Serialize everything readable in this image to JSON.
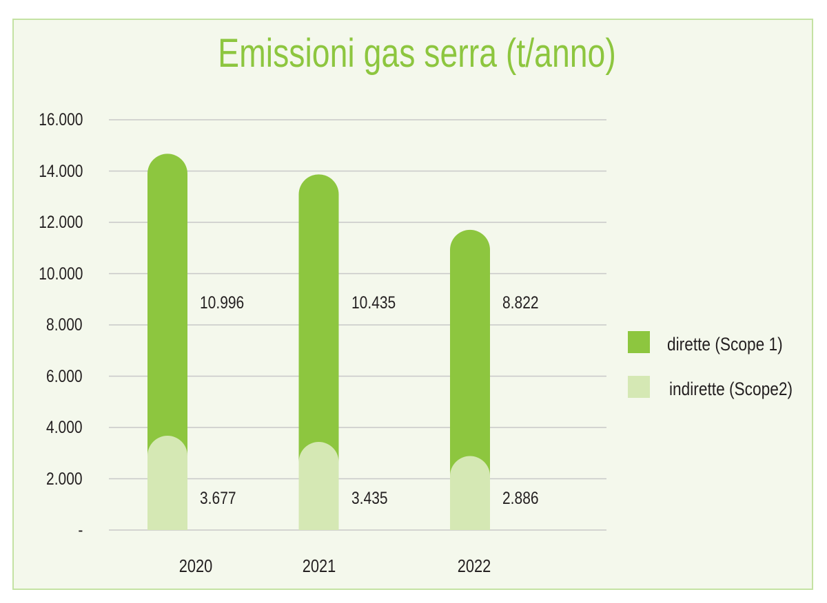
{
  "chart_data": {
    "type": "bar",
    "stacked": true,
    "title": "Emissioni gas serra (t/anno)",
    "categories": [
      "2020",
      "2021",
      "2022"
    ],
    "series": [
      {
        "name": "dirette (Scope 1)",
        "values": [
          10996,
          10435,
          8822
        ],
        "value_labels": [
          "10.996",
          "10.435",
          "8.822"
        ],
        "color": "#8dc63f"
      },
      {
        "name": "indirette (Scope2)",
        "values": [
          3677,
          3435,
          2886
        ],
        "value_labels": [
          "3.677",
          "3.435",
          "2.886"
        ],
        "color": "#d5e8b4"
      }
    ],
    "ylim": [
      0,
      16000
    ],
    "y_ticks": [
      0,
      2000,
      4000,
      6000,
      8000,
      10000,
      12000,
      14000,
      16000
    ],
    "y_tick_labels": [
      "-",
      "2.000",
      "4.000",
      "6.000",
      "8.000",
      "10.000",
      "12.000",
      "14.000",
      "16.000"
    ],
    "grid": true,
    "legend": "right"
  },
  "colors": {
    "title": "#8dc63f",
    "panel_background": "#f4f8ec",
    "panel_border": "#c4e2a3",
    "gridline": "#c8c8c8",
    "text": "#231f20"
  }
}
